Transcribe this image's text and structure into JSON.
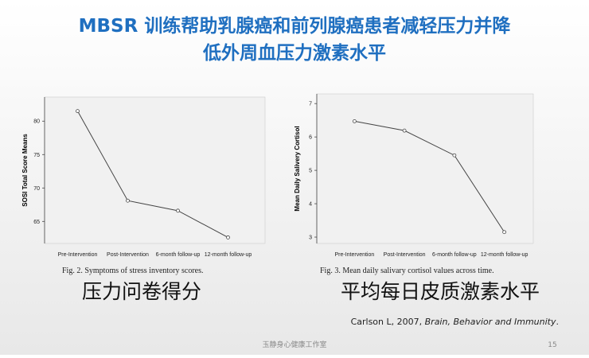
{
  "slide": {
    "title_lines": [
      "MBSR 训练帮助乳腺癌和前列腺癌患者减轻压力并降",
      "低外周血压力激素水平"
    ],
    "citation": {
      "prefix": "Carlson L, 2007, ",
      "journal": "Brain, Behavior and Immunity",
      "suffix": "."
    },
    "footer": "玉静身心健康工作室",
    "page_number": "15"
  },
  "chart_data": [
    {
      "type": "line",
      "ylabel": "SOSI Total Score Means",
      "categories": [
        "Pre-Intervention",
        "Post-Intervention",
        "6-month follow-up",
        "12-month follow-up"
      ],
      "values": [
        81.5,
        68.1,
        66.6,
        62.6
      ],
      "color": "#444444",
      "ylim": [
        61.7,
        83.6
      ],
      "yticks": [
        65,
        70,
        75,
        80
      ],
      "caption": "Fig. 2. Symptoms of stress inventory scores.",
      "label_zh": "压力问卷得分"
    },
    {
      "type": "line",
      "ylabel": "Mean Daily Salivery Cortisol",
      "categories": [
        "Pre-Intervention",
        "Post-Intervention",
        "6-month follow-up",
        "12-month follow-up"
      ],
      "values": [
        6.47,
        6.19,
        5.45,
        3.15
      ],
      "color": "#444444",
      "ylim": [
        2.81,
        7.29
      ],
      "yticks": [
        3,
        4,
        5,
        6,
        7
      ],
      "caption": "Fig. 3. Mean daily salivary cortisol values across time.",
      "label_zh": "平均每日皮质激素水平"
    }
  ]
}
